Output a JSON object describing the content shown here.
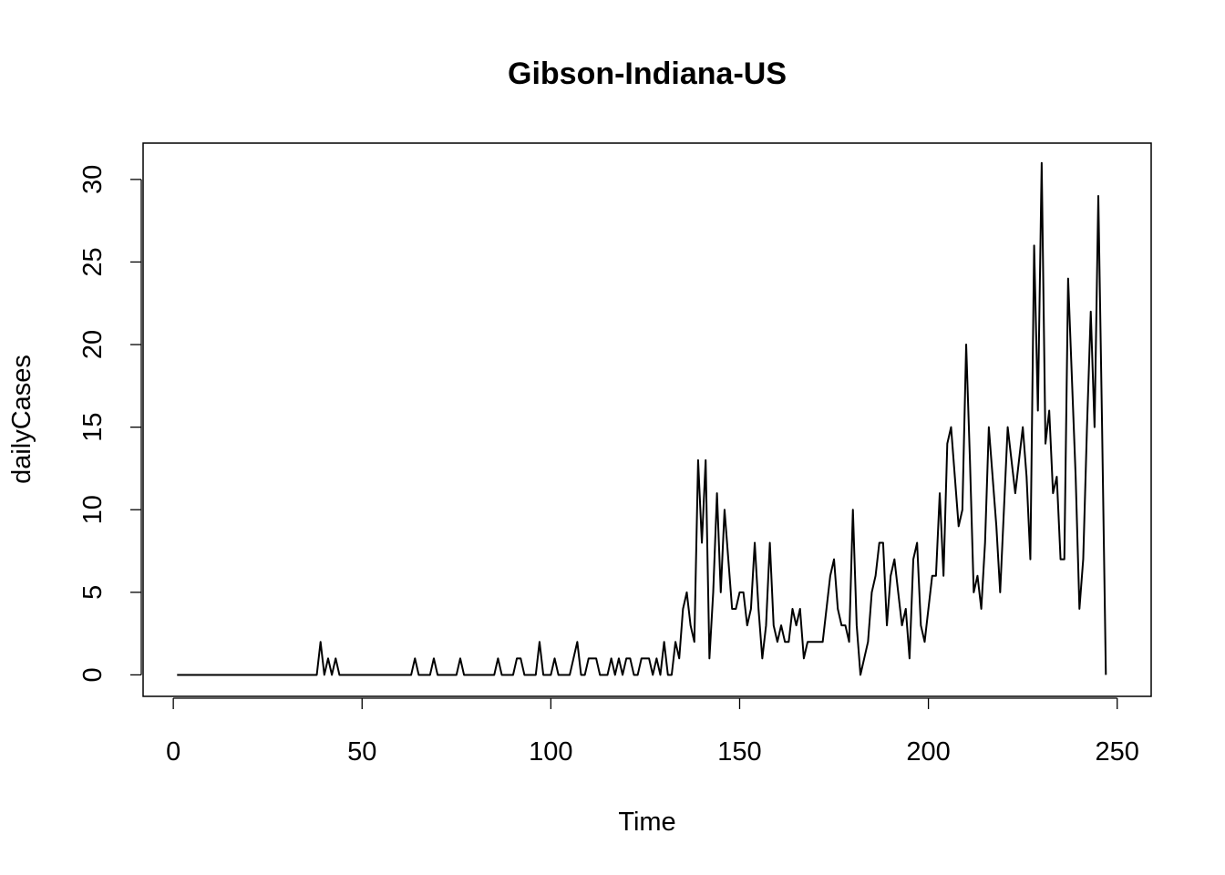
{
  "chart_data": {
    "type": "line",
    "title": "Gibson-Indiana-US",
    "xlabel": "Time",
    "ylabel": "dailyCases",
    "xlim": [
      -8,
      259
    ],
    "ylim": [
      -1.3,
      32.2
    ],
    "xticks": [
      0,
      50,
      100,
      150,
      200,
      250
    ],
    "yticks": [
      0,
      5,
      10,
      15,
      20,
      25,
      30
    ],
    "grid": false,
    "series": [
      {
        "x_start": 1,
        "values": [
          0,
          0,
          0,
          0,
          0,
          0,
          0,
          0,
          0,
          0,
          0,
          0,
          0,
          0,
          0,
          0,
          0,
          0,
          0,
          0,
          0,
          0,
          0,
          0,
          0,
          0,
          0,
          0,
          0,
          0,
          0,
          0,
          0,
          0,
          0,
          0,
          0,
          0,
          2,
          0,
          1,
          0,
          1,
          0,
          0,
          0,
          0,
          0,
          0,
          0,
          0,
          0,
          0,
          0,
          0,
          0,
          0,
          0,
          0,
          0,
          0,
          0,
          0,
          1,
          0,
          0,
          0,
          0,
          1,
          0,
          0,
          0,
          0,
          0,
          0,
          1,
          0,
          0,
          0,
          0,
          0,
          0,
          0,
          0,
          0,
          1,
          0,
          0,
          0,
          0,
          1,
          1,
          0,
          0,
          0,
          0,
          2,
          0,
          0,
          0,
          1,
          0,
          0,
          0,
          0,
          1,
          2,
          0,
          0,
          1,
          1,
          1,
          0,
          0,
          0,
          1,
          0,
          1,
          0,
          1,
          1,
          0,
          0,
          1,
          1,
          1,
          0,
          1,
          0,
          2,
          0,
          0,
          2,
          1,
          4,
          5,
          3,
          2,
          13,
          8,
          13,
          1,
          5,
          11,
          5,
          10,
          7,
          4,
          4,
          5,
          5,
          3,
          4,
          8,
          4,
          1,
          3,
          8,
          3,
          2,
          3,
          2,
          2,
          4,
          3,
          4,
          1,
          2,
          2,
          2,
          2,
          2,
          4,
          6,
          7,
          4,
          3,
          3,
          2,
          10,
          3,
          0,
          1,
          2,
          5,
          6,
          8,
          8,
          3,
          6,
          7,
          5,
          3,
          4,
          1,
          7,
          8,
          3,
          2,
          4,
          6,
          6,
          11,
          6,
          14,
          15,
          12,
          9,
          10,
          20,
          13,
          5,
          6,
          4,
          8,
          15,
          12,
          9,
          5,
          10,
          15,
          13,
          11,
          13,
          15,
          12,
          7,
          26,
          16,
          31,
          14,
          16,
          11,
          12,
          7,
          7,
          24,
          18,
          12,
          4,
          7,
          15,
          22,
          15,
          29,
          15,
          0
        ]
      }
    ]
  }
}
